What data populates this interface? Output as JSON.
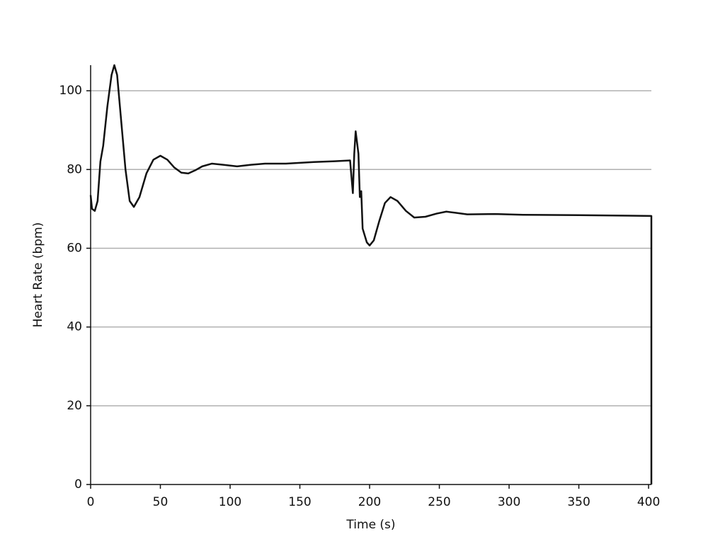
{
  "chart_data": {
    "type": "line",
    "x_label": "Time (s)",
    "y_label": "Heart Rate (bpm)",
    "x": [
      0,
      1,
      3,
      5,
      7,
      9,
      12,
      15,
      17,
      19,
      22,
      25,
      28,
      31,
      35,
      40,
      45,
      50,
      55,
      60,
      65,
      70,
      75,
      80,
      87,
      95,
      105,
      115,
      125,
      140,
      160,
      175,
      186,
      188,
      189,
      190,
      192,
      193,
      194,
      195,
      198,
      200,
      203,
      207,
      211,
      215,
      220,
      226,
      232,
      240,
      248,
      255,
      262,
      270,
      290,
      310,
      350,
      380,
      402,
      402
    ],
    "values": [
      73.5,
      70,
      69.5,
      72,
      82,
      86,
      96,
      104,
      106.5,
      104,
      92,
      80,
      72,
      70.5,
      73,
      79,
      82.5,
      83.5,
      82.5,
      80.5,
      79.2,
      79,
      79.8,
      80.8,
      81.5,
      81.2,
      80.8,
      81.2,
      81.5,
      81.5,
      81.9,
      82.1,
      82.3,
      74,
      84,
      89.7,
      84,
      73,
      74.5,
      65,
      61.5,
      60.7,
      62,
      67,
      71.5,
      73,
      72,
      69.5,
      67.8,
      68,
      68.8,
      69.3,
      69,
      68.6,
      68.7,
      68.5,
      68.4,
      68.3,
      68.2,
      0
    ],
    "color": "#111111",
    "xlim": [
      0,
      402
    ],
    "ylim": [
      0,
      106.5
    ],
    "xticks": [
      0,
      50,
      100,
      150,
      200,
      250,
      300,
      350,
      400
    ],
    "yticks": [
      0,
      20,
      40,
      60,
      80,
      100
    ],
    "grid": true
  }
}
